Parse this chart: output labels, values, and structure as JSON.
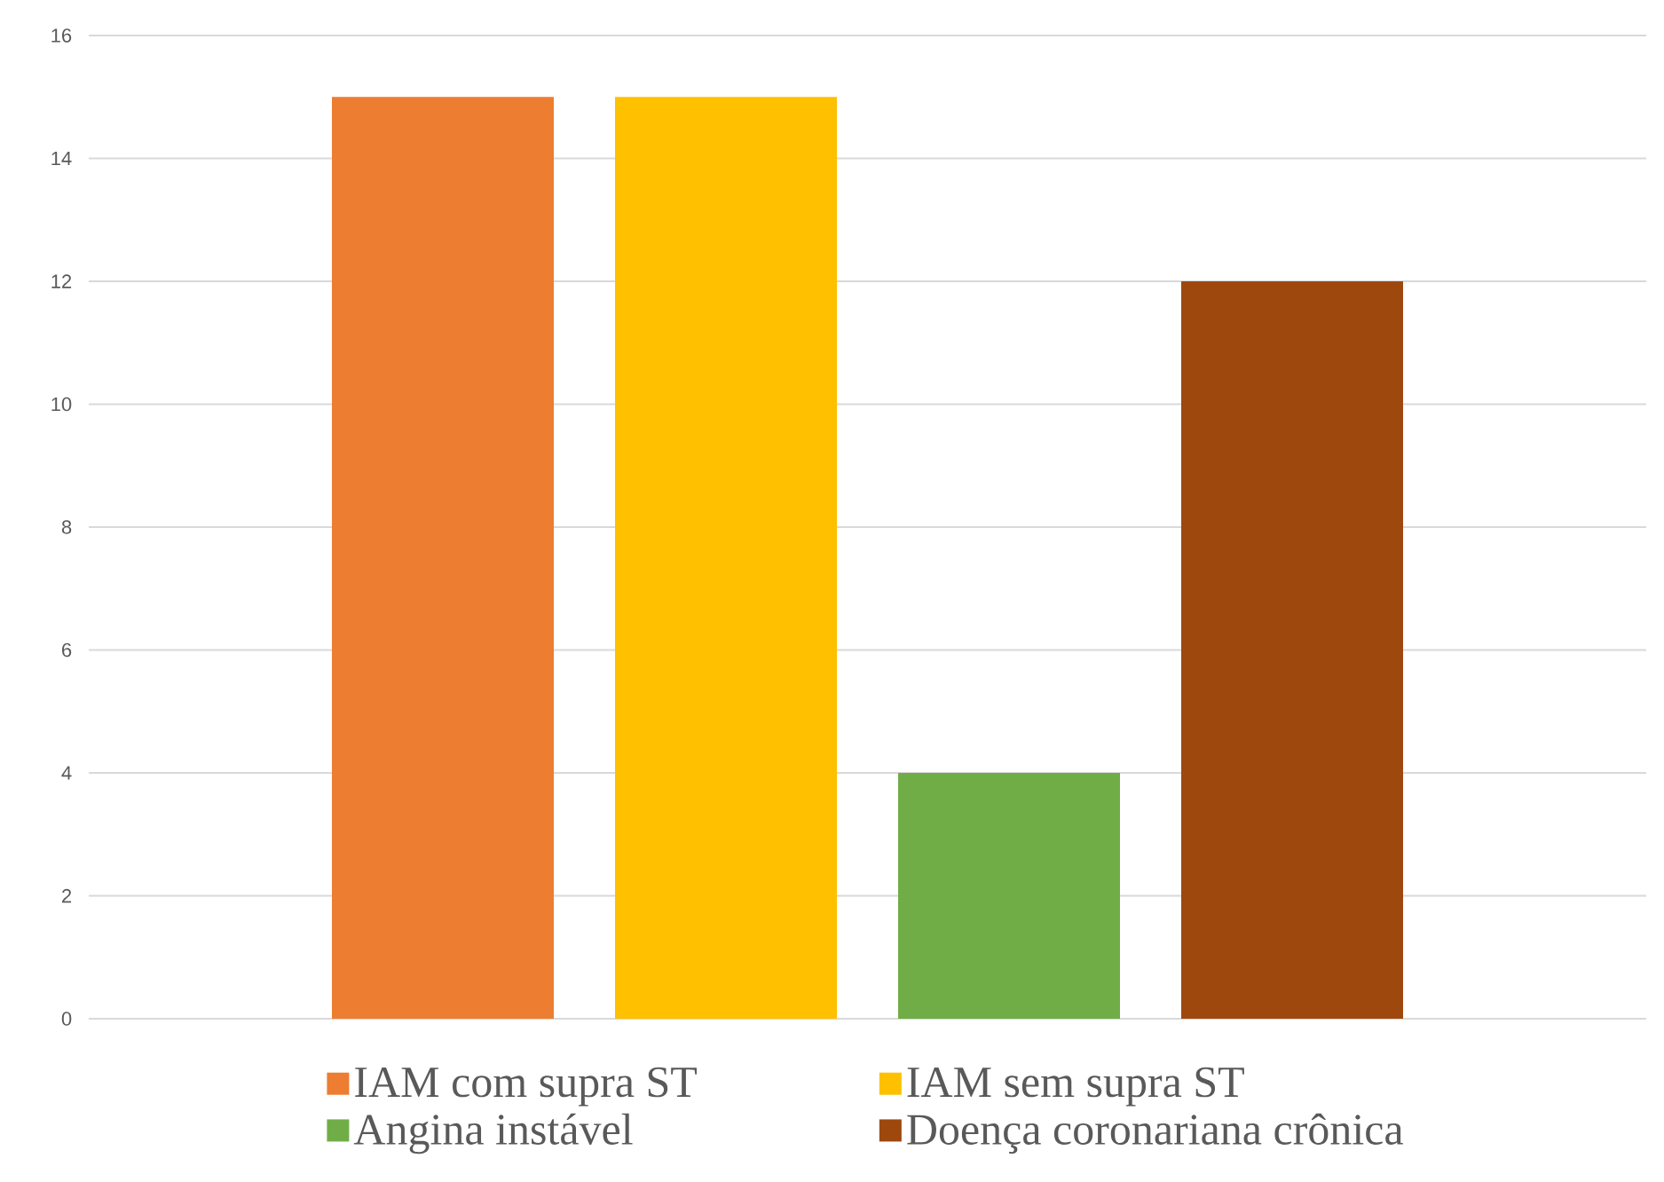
{
  "chart_data": {
    "type": "bar",
    "categories": [
      null
    ],
    "series": [
      {
        "name": "IAM com supra ST",
        "color": "#ed7d31",
        "values": [
          15
        ]
      },
      {
        "name": "IAM sem supra ST",
        "color": "#ffc000",
        "values": [
          15
        ]
      },
      {
        "name": "Angina instável",
        "color": "#70ad47",
        "values": [
          4
        ]
      },
      {
        "name": "Doença coronariana crônica",
        "color": "#9e480e",
        "values": [
          12
        ]
      }
    ],
    "ylim": [
      0,
      16
    ],
    "yticks": [
      0,
      2,
      4,
      6,
      8,
      10,
      12,
      14,
      16
    ],
    "grid": "y",
    "legend": "bottom"
  }
}
